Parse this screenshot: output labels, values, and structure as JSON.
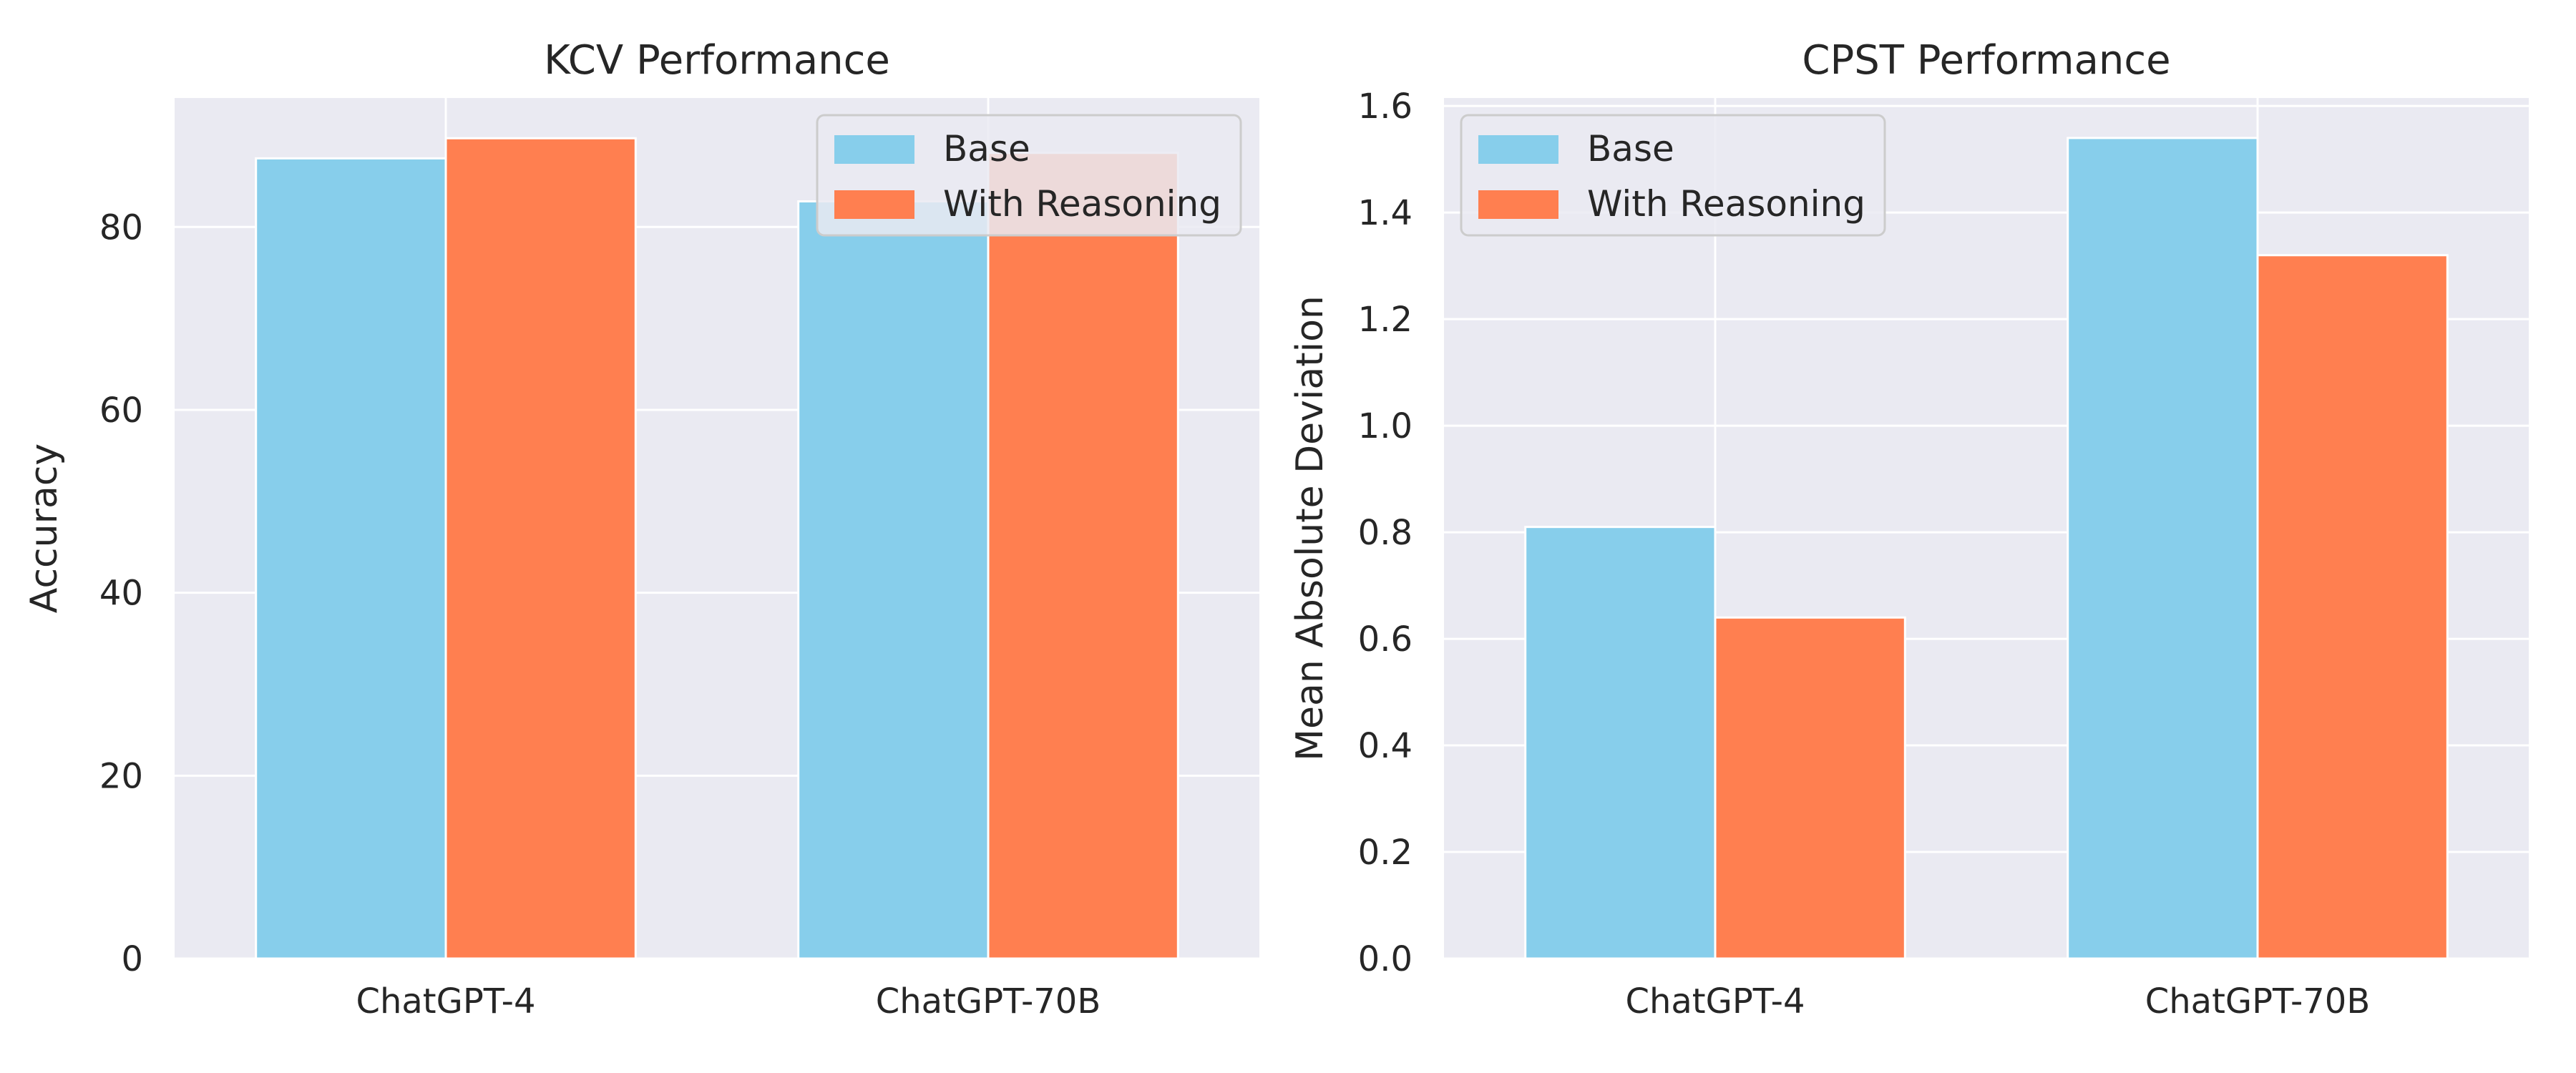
{
  "colors": {
    "base": "#87CEEB",
    "reasoning": "#FF7F50",
    "panel_bg": "#EAEAF2",
    "grid": "#FFFFFF",
    "legend_bg": "#EAEAF2",
    "legend_border": "#CCCCCC"
  },
  "chart_data": [
    {
      "type": "bar",
      "title": "KCV Performance",
      "xlabel": "",
      "ylabel": "Accuracy",
      "categories": [
        "ChatGPT-4",
        "ChatGPT-70B"
      ],
      "series": [
        {
          "name": "Base",
          "values": [
            87.5,
            82.8
          ]
        },
        {
          "name": "With Reasoning",
          "values": [
            89.7,
            88.1
          ]
        }
      ],
      "ylim": [
        0,
        94.1
      ],
      "yticks": [
        0,
        20,
        40,
        60,
        80
      ],
      "ytick_labels": [
        "0",
        "20",
        "40",
        "60",
        "80"
      ],
      "grid": true,
      "legend": {
        "placement": "top-right",
        "labels": [
          "Base",
          "With Reasoning"
        ]
      }
    },
    {
      "type": "bar",
      "title": "CPST Performance",
      "xlabel": "",
      "ylabel": "Mean Absolute Deviation",
      "categories": [
        "ChatGPT-4",
        "ChatGPT-70B"
      ],
      "series": [
        {
          "name": "Base",
          "values": [
            0.81,
            1.54
          ]
        },
        {
          "name": "With Reasoning",
          "values": [
            0.64,
            1.32
          ]
        }
      ],
      "ylim": [
        0,
        1.615
      ],
      "yticks": [
        0,
        0.2,
        0.4,
        0.6,
        0.8,
        1.0,
        1.2,
        1.4,
        1.6
      ],
      "ytick_labels": [
        "0.0",
        "0.2",
        "0.4",
        "0.6",
        "0.8",
        "1.0",
        "1.2",
        "1.4",
        "1.6"
      ],
      "grid": true,
      "legend": {
        "placement": "top-left",
        "labels": [
          "Base",
          "With Reasoning"
        ]
      }
    }
  ]
}
